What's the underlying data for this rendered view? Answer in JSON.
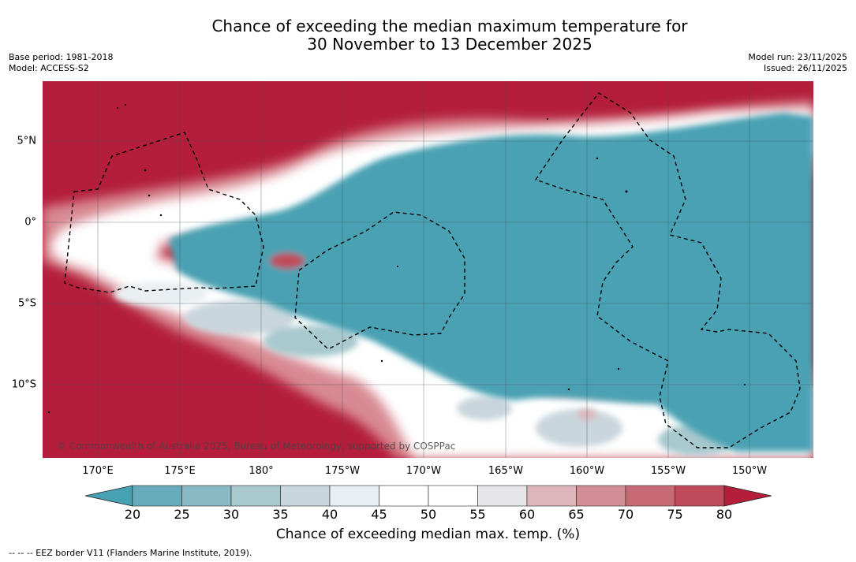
{
  "title": {
    "line1": "Chance of exceeding the median maximum temperature for",
    "line2": "30 November to 13 December 2025"
  },
  "meta": {
    "base_period": "Base period: 1981-2018",
    "model": "Model: ACCESS-S2",
    "model_run": "Model run: 23/11/2025",
    "issued": "Issued: 26/11/2025"
  },
  "map": {
    "copyright": "© Commonwealth of Australia 2025, Bureau of Meteorology, supported by COSPPac",
    "lon_labels": [
      "170°E",
      "175°E",
      "180°",
      "175°W",
      "170°W",
      "165°W",
      "160°W",
      "155°W",
      "150°W"
    ],
    "lat_labels": [
      "5°N",
      "0°",
      "5°S",
      "10°S"
    ],
    "colors": {
      "above": "#b41e3a",
      "below": "#48a1b3",
      "neutral": "#ffffff",
      "grid": "#3a4a55"
    }
  },
  "colorbar": {
    "ticks": [
      "20",
      "25",
      "30",
      "35",
      "40",
      "45",
      "50",
      "55",
      "60",
      "65",
      "70",
      "75",
      "80"
    ],
    "colors": [
      "#48a1b3",
      "#68abba",
      "#88b9c4",
      "#a8c9cd",
      "#c9d6dc",
      "#e9eff2",
      "#ffffff",
      "#ffffff",
      "#e6e6e8",
      "#ddb6bc",
      "#d38e95",
      "#c86a74",
      "#bf4b5a",
      "#b41e3a"
    ],
    "label": "Chance of exceeding median max. temp. (%)"
  },
  "footnote": "--  --  -- EEZ border V11 (Flanders Marine Institute, 2019)."
}
